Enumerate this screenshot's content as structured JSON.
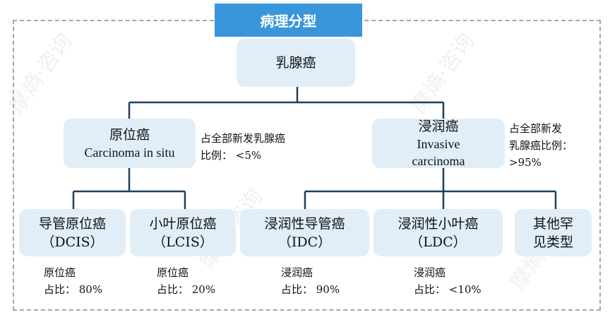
{
  "watermark": "摩熵·咨询",
  "title": "病理分型",
  "root": {
    "label": "乳腺癌"
  },
  "level1": [
    {
      "label": "原位癌",
      "en": "Carcinoma in situ",
      "note_line1": "占全部新发乳腺癌",
      "note_line2": "比例： <5%"
    },
    {
      "label": "浸润癌",
      "en_line1": "Invasive",
      "en_line2": "carcinoma",
      "note_line1": "占全部新发",
      "note_line2": "乳腺癌比例：",
      "note_line3": ">95%"
    }
  ],
  "leaves": [
    {
      "label": "导管原位癌",
      "abbr": "（DCIS）",
      "note_line1": "原位癌",
      "note_line2": "占比： 80%"
    },
    {
      "label": "小叶原位癌",
      "abbr": "（LCIS）",
      "note_line1": "原位癌",
      "note_line2": "占比： 20%"
    },
    {
      "label": "浸润性导管癌",
      "abbr": "（IDC）",
      "note_line1": "浸润癌",
      "note_line2": "占比： 90%"
    },
    {
      "label": "浸润性小叶癌",
      "abbr": "（LDC）",
      "note_line1": "浸润癌",
      "note_line2": "占比： <10%"
    },
    {
      "label_line1": "其他罕",
      "label_line2": "见类型"
    }
  ],
  "colors": {
    "title_bg": "#3a96db",
    "box_bg": "#e1eef8",
    "connector": "#1f3f5f",
    "border": "#a6a6a6"
  }
}
